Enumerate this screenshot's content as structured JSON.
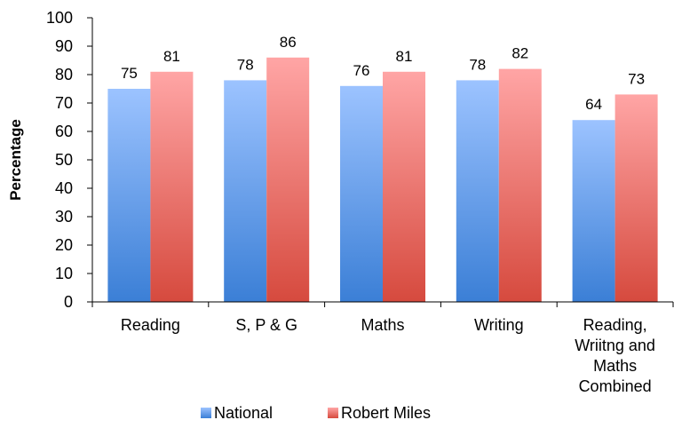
{
  "chart_data": {
    "type": "bar",
    "ylabel": "Percentage",
    "xlabel": "",
    "ylim": [
      0,
      100
    ],
    "yticks": [
      0,
      10,
      20,
      30,
      40,
      50,
      60,
      70,
      80,
      90,
      100
    ],
    "grid": false,
    "legend": "bottom",
    "categories": [
      [
        "Reading"
      ],
      [
        "S, P & G"
      ],
      [
        "Maths"
      ],
      [
        "Writing"
      ],
      [
        "Reading,",
        "Wriitng and",
        "Maths",
        "Combined"
      ]
    ],
    "series": [
      {
        "name": "National",
        "values": [
          75,
          78,
          76,
          78,
          64
        ],
        "color_top": "#9cc3ff",
        "color_bottom": "#3b7fd6"
      },
      {
        "name": "Robert Miles",
        "values": [
          81,
          86,
          81,
          82,
          73
        ],
        "color_top": "#ffa5a5",
        "color_bottom": "#d64a3e"
      }
    ],
    "data_labels": true
  }
}
